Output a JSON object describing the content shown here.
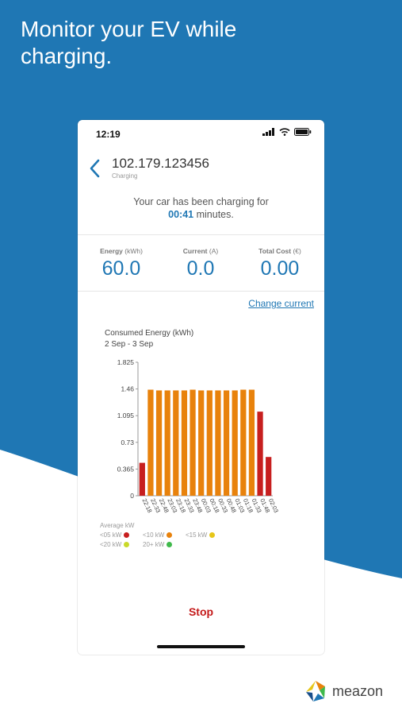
{
  "headline": "Monitor your EV while charging.",
  "colors": {
    "background_blue": "#1f77b4",
    "accent": "#1f77b4",
    "bar_orange": "#e8820c",
    "bar_red": "#c71f1f",
    "stop_red": "#c41a1a"
  },
  "status_bar": {
    "time": "12:19",
    "icons": [
      "cellular-signal-icon",
      "wifi-icon",
      "battery-icon"
    ]
  },
  "header": {
    "back_icon": "chevron-left-icon",
    "device_id": "102.179.123456",
    "subtitle": "Charging"
  },
  "charging": {
    "line1": "Your car has been charging for",
    "duration": "00:41",
    "duration_suffix": "minutes."
  },
  "metrics": [
    {
      "label": "Energy",
      "unit": "(kWh)",
      "value": "60.0"
    },
    {
      "label": "Current",
      "unit": "(A)",
      "value": "0.0"
    },
    {
      "label": "Total Cost",
      "unit": "(€)",
      "value": "0.00"
    }
  ],
  "change_current_label": "Change current",
  "chart_data": {
    "type": "bar",
    "title": "Consumed Energy (kWh)",
    "subtitle": "2 Sep - 3 Sep",
    "ylim": [
      0,
      1.825
    ],
    "yticks": [
      "0",
      "0.365",
      "0.73",
      "1.095",
      "1.46",
      "1.825"
    ],
    "categories": [
      "22:18",
      "22:33",
      "22:48",
      "23:03",
      "23:18",
      "23:33",
      "23:48",
      "00:03",
      "00:18",
      "00:33",
      "00:48",
      "01:03",
      "01:18",
      "01:33",
      "01:48",
      "02:03"
    ],
    "values": [
      0.45,
      1.45,
      1.44,
      1.44,
      1.44,
      1.44,
      1.45,
      1.44,
      1.44,
      1.44,
      1.44,
      1.44,
      1.45,
      1.45,
      1.15,
      0.53
    ],
    "bar_colors": [
      "red",
      "orange",
      "orange",
      "orange",
      "orange",
      "orange",
      "orange",
      "orange",
      "orange",
      "orange",
      "orange",
      "orange",
      "orange",
      "orange",
      "red",
      "red"
    ],
    "grid": false,
    "legend": {
      "title": "Average kW",
      "items": [
        {
          "label": "<05 kW",
          "color": "#c71f1f"
        },
        {
          "label": "<10 kW",
          "color": "#e8820c"
        },
        {
          "label": "<15 kW",
          "color": "#e6c619"
        },
        {
          "label": "<20 kW",
          "color": "#c9d92a"
        },
        {
          "label": "20+ kW",
          "color": "#3fb94b"
        }
      ]
    }
  },
  "stop_label": "Stop",
  "brand": {
    "name": "meazon",
    "logo_icon": "meazon-logo-icon"
  }
}
